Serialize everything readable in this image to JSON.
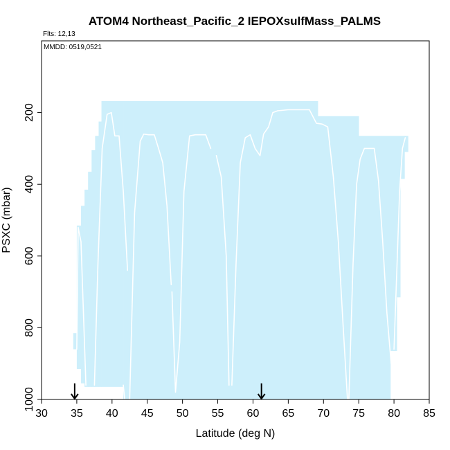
{
  "chart_data": {
    "type": "area",
    "title": "ATOM4 Northeast_Pacific_2 IEPOXsulfMass_PALMS",
    "annotations": {
      "flights": "Flts: 12,13",
      "dates": "MMDD: 0519,0521"
    },
    "xlabel": "Latitude (deg N)",
    "ylabel": "PSXC (mbar)",
    "xlim": [
      30,
      85
    ],
    "ylim": [
      1000,
      0
    ],
    "x_ticks": [
      30,
      35,
      40,
      45,
      50,
      55,
      60,
      65,
      70,
      75,
      80,
      85
    ],
    "y_ticks": [
      200,
      400,
      600,
      800,
      1000
    ],
    "grid": false,
    "background_color": "#ffffff",
    "coverage_color": "#cdeffb",
    "profile_color": "#ffffff",
    "arrow_color": "#000000",
    "coverage_columns": [
      {
        "x0": 34.5,
        "x1": 35.0,
        "y_top": 815,
        "y_bottom": 860
      },
      {
        "x0": 35.0,
        "x1": 35.6,
        "y_top": 515,
        "y_bottom": 915
      },
      {
        "x0": 35.6,
        "x1": 36.1,
        "y_top": 460,
        "y_bottom": 955
      },
      {
        "x0": 36.1,
        "x1": 36.6,
        "y_top": 415,
        "y_bottom": 965
      },
      {
        "x0": 36.6,
        "x1": 37.1,
        "y_top": 365,
        "y_bottom": 965
      },
      {
        "x0": 37.1,
        "x1": 37.6,
        "y_top": 305,
        "y_bottom": 965
      },
      {
        "x0": 37.6,
        "x1": 38.1,
        "y_top": 265,
        "y_bottom": 965
      },
      {
        "x0": 38.1,
        "x1": 38.5,
        "y_top": 225,
        "y_bottom": 965
      },
      {
        "x0": 38.5,
        "x1": 41.6,
        "y_top": 168,
        "y_bottom": 965
      },
      {
        "x0": 41.6,
        "x1": 69.2,
        "y_top": 168,
        "y_bottom": 1000
      },
      {
        "x0": 69.2,
        "x1": 75.0,
        "y_top": 210,
        "y_bottom": 1000
      },
      {
        "x0": 75.0,
        "x1": 79.5,
        "y_top": 265,
        "y_bottom": 1000
      },
      {
        "x0": 79.5,
        "x1": 80.4,
        "y_top": 265,
        "y_bottom": 865
      },
      {
        "x0": 80.4,
        "x1": 80.9,
        "y_top": 265,
        "y_bottom": 715
      },
      {
        "x0": 80.9,
        "x1": 81.5,
        "y_top": 265,
        "y_bottom": 385
      },
      {
        "x0": 81.5,
        "x1": 82.0,
        "y_top": 265,
        "y_bottom": 310
      }
    ],
    "profile_traces": [
      {
        "x": [
          35.0,
          35.2,
          35.6,
          36.3
        ],
        "y": [
          860,
          520,
          560,
          960
        ]
      },
      {
        "x": [
          37.5,
          38.0,
          38.6,
          39.3,
          39.9,
          40.4,
          41.0,
          41.6,
          42.2
        ],
        "y": [
          960,
          620,
          300,
          205,
          200,
          265,
          265,
          420,
          640
        ]
      },
      {
        "x": [
          41.6,
          41.8
        ],
        "y": [
          960,
          1000
        ]
      },
      {
        "x": [
          42.5,
          43.2,
          44.0,
          44.5,
          45.2,
          46.0,
          46.6,
          47.2,
          47.8,
          48.4
        ],
        "y": [
          1000,
          480,
          280,
          260,
          262,
          262,
          300,
          340,
          460,
          680
        ]
      },
      {
        "x": [
          48.5,
          49.0,
          49.6,
          50.2,
          51.0,
          51.8,
          52.6,
          53.3,
          54.0
        ],
        "y": [
          700,
          980,
          840,
          420,
          265,
          262,
          262,
          262,
          300
        ]
      },
      {
        "x": [
          54.8,
          55.5,
          56.2,
          56.6
        ],
        "y": [
          320,
          380,
          600,
          960
        ]
      },
      {
        "x": [
          57.0,
          57.6,
          58.2,
          58.9,
          59.6,
          60.3,
          61.0,
          61.5,
          62.2,
          62.8,
          63.5
        ],
        "y": [
          960,
          620,
          340,
          270,
          262,
          300,
          320,
          260,
          240,
          200,
          195
        ]
      },
      {
        "x": [
          63.5,
          65.0,
          66.5,
          68.0,
          69.0,
          69.8,
          70.6,
          71.4,
          72.1,
          72.8,
          73.4
        ],
        "y": [
          195,
          192,
          192,
          192,
          230,
          232,
          240,
          380,
          560,
          800,
          1000
        ]
      },
      {
        "x": [
          73.6,
          74.2,
          74.7,
          75.2,
          75.8,
          76.5,
          77.2,
          77.8,
          78.4,
          79.0,
          79.6
        ],
        "y": [
          1000,
          620,
          400,
          330,
          300,
          300,
          300,
          390,
          560,
          760,
          900
        ]
      },
      {
        "x": [
          80.0,
          80.4,
          80.8,
          81.2,
          81.6
        ],
        "y": [
          860,
          640,
          420,
          300,
          270
        ]
      }
    ],
    "arrows": [
      {
        "x": 34.7,
        "y_top": 955,
        "y_bottom": 1000
      },
      {
        "x": 61.2,
        "y_top": 955,
        "y_bottom": 1000
      }
    ]
  }
}
